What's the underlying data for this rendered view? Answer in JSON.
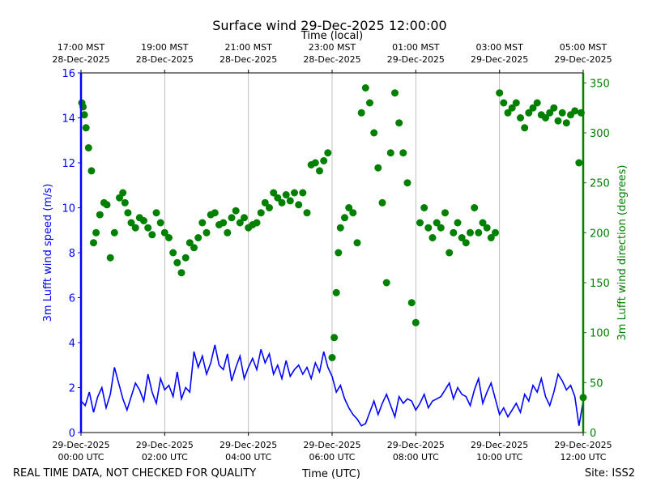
{
  "chart_data": {
    "type": "line+scatter",
    "title": "Surface wind 29-Dec-2025 12:00:00",
    "top_axis_label": "Time (local)",
    "xlabel": "Time (UTC)",
    "ylabel_left": "3m Lufft wind speed (m/s)",
    "ylabel_right": "3m Lufft wind direction (degrees)",
    "footer_left": "REAL TIME DATA, NOT CHECKED FOR QUALITY",
    "footer_right": "Site: ISS2",
    "x_range_hours": [
      0,
      12
    ],
    "ylim_left": [
      0,
      16
    ],
    "ylim_right": [
      0,
      360
    ],
    "left_ticks": [
      "0",
      "2",
      "4",
      "6",
      "8",
      "10",
      "12",
      "14",
      "16"
    ],
    "right_ticks": [
      "0",
      "50",
      "100",
      "150",
      "200",
      "250",
      "300",
      "350"
    ],
    "bottom_ticks": [
      {
        "hour": 0,
        "line1": "29-Dec-2025",
        "line2": "00:00 UTC"
      },
      {
        "hour": 2,
        "line1": "29-Dec-2025",
        "line2": "02:00 UTC"
      },
      {
        "hour": 4,
        "line1": "29-Dec-2025",
        "line2": "04:00 UTC"
      },
      {
        "hour": 6,
        "line1": "29-Dec-2025",
        "line2": "06:00 UTC"
      },
      {
        "hour": 8,
        "line1": "29-Dec-2025",
        "line2": "08:00 UTC"
      },
      {
        "hour": 10,
        "line1": "29-Dec-2025",
        "line2": "10:00 UTC"
      },
      {
        "hour": 12,
        "line1": "29-Dec-2025",
        "line2": "12:00 UTC"
      }
    ],
    "top_ticks": [
      {
        "hour": 0,
        "line1": "17:00 MST",
        "line2": "28-Dec-2025"
      },
      {
        "hour": 2,
        "line1": "19:00 MST",
        "line2": "28-Dec-2025"
      },
      {
        "hour": 4,
        "line1": "21:00 MST",
        "line2": "28-Dec-2025"
      },
      {
        "hour": 6,
        "line1": "23:00 MST",
        "line2": "28-Dec-2025"
      },
      {
        "hour": 8,
        "line1": "01:00 MST",
        "line2": "29-Dec-2025"
      },
      {
        "hour": 10,
        "line1": "03:00 MST",
        "line2": "29-Dec-2025"
      },
      {
        "hour": 12,
        "line1": "05:00 MST",
        "line2": "29-Dec-2025"
      }
    ],
    "speed_series": {
      "name": "3m Lufft wind speed (m/s)",
      "color": "#0000ff",
      "x_hours": [
        0.0,
        0.1,
        0.2,
        0.3,
        0.4,
        0.5,
        0.6,
        0.7,
        0.8,
        0.9,
        1.0,
        1.1,
        1.2,
        1.3,
        1.4,
        1.5,
        1.6,
        1.7,
        1.8,
        1.9,
        2.0,
        2.1,
        2.2,
        2.3,
        2.4,
        2.5,
        2.6,
        2.7,
        2.8,
        2.9,
        3.0,
        3.1,
        3.2,
        3.3,
        3.4,
        3.5,
        3.6,
        3.7,
        3.8,
        3.9,
        4.0,
        4.1,
        4.2,
        4.3,
        4.4,
        4.5,
        4.6,
        4.7,
        4.8,
        4.9,
        5.0,
        5.1,
        5.2,
        5.3,
        5.4,
        5.5,
        5.6,
        5.7,
        5.8,
        5.9,
        6.0,
        6.1,
        6.2,
        6.3,
        6.4,
        6.5,
        6.6,
        6.7,
        6.8,
        6.9,
        7.0,
        7.1,
        7.2,
        7.3,
        7.4,
        7.5,
        7.6,
        7.7,
        7.8,
        7.9,
        8.0,
        8.1,
        8.2,
        8.3,
        8.4,
        8.5,
        8.6,
        8.7,
        8.8,
        8.9,
        9.0,
        9.1,
        9.2,
        9.3,
        9.4,
        9.5,
        9.6,
        9.7,
        9.8,
        9.9,
        10.0,
        10.1,
        10.2,
        10.3,
        10.4,
        10.5,
        10.6,
        10.7,
        10.8,
        10.9,
        11.0,
        11.1,
        11.2,
        11.3,
        11.4,
        11.5,
        11.6,
        11.7,
        11.8,
        11.9,
        12.0
      ],
      "values": [
        1.4,
        1.2,
        1.8,
        0.9,
        1.6,
        2.0,
        1.1,
        1.7,
        2.9,
        2.2,
        1.5,
        1.0,
        1.6,
        2.2,
        1.9,
        1.4,
        2.6,
        1.8,
        1.3,
        2.4,
        1.9,
        2.1,
        1.6,
        2.7,
        1.5,
        2.0,
        1.8,
        3.6,
        2.9,
        3.4,
        2.6,
        3.1,
        3.9,
        3.0,
        2.8,
        3.5,
        2.3,
        2.9,
        3.4,
        2.4,
        2.9,
        3.3,
        2.8,
        3.7,
        3.1,
        3.5,
        2.6,
        3.0,
        2.4,
        3.2,
        2.5,
        2.8,
        3.0,
        2.6,
        2.9,
        2.4,
        3.1,
        2.7,
        3.6,
        2.9,
        2.5,
        1.8,
        2.1,
        1.5,
        1.1,
        0.8,
        0.6,
        0.3,
        0.4,
        0.9,
        1.4,
        0.8,
        1.3,
        1.7,
        1.2,
        0.7,
        1.6,
        1.3,
        1.5,
        1.4,
        1.0,
        1.3,
        1.7,
        1.1,
        1.4,
        1.5,
        1.6,
        1.9,
        2.2,
        1.5,
        2.0,
        1.7,
        1.6,
        1.2,
        1.9,
        2.4,
        1.3,
        1.8,
        2.2,
        1.5,
        0.8,
        1.1,
        0.7,
        1.0,
        1.3,
        0.9,
        1.7,
        1.4,
        2.1,
        1.8,
        2.4,
        1.6,
        1.2,
        1.8,
        2.6,
        2.3,
        1.9,
        2.1,
        1.6,
        0.3,
        1.4
      ]
    },
    "direction_series": {
      "name": "3m Lufft wind direction (degrees)",
      "color": "#008000",
      "x_hours": [
        0.02,
        0.05,
        0.08,
        0.12,
        0.18,
        0.25,
        0.3,
        0.36,
        0.45,
        0.55,
        0.62,
        0.7,
        0.8,
        0.92,
        1.0,
        1.05,
        1.12,
        1.2,
        1.3,
        1.4,
        1.5,
        1.6,
        1.7,
        1.8,
        1.9,
        2.0,
        2.1,
        2.2,
        2.3,
        2.4,
        2.5,
        2.6,
        2.7,
        2.8,
        2.9,
        3.0,
        3.1,
        3.2,
        3.3,
        3.4,
        3.5,
        3.6,
        3.7,
        3.8,
        3.9,
        4.0,
        4.1,
        4.2,
        4.3,
        4.4,
        4.5,
        4.6,
        4.7,
        4.8,
        4.9,
        5.0,
        5.1,
        5.2,
        5.3,
        5.4,
        5.5,
        5.6,
        5.7,
        5.8,
        5.9,
        6.0,
        6.05,
        6.1,
        6.15,
        6.2,
        6.3,
        6.4,
        6.5,
        6.6,
        6.7,
        6.8,
        6.9,
        7.0,
        7.1,
        7.2,
        7.3,
        7.4,
        7.5,
        7.6,
        7.7,
        7.8,
        7.9,
        8.0,
        8.1,
        8.2,
        8.3,
        8.4,
        8.5,
        8.6,
        8.7,
        8.8,
        8.9,
        9.0,
        9.1,
        9.2,
        9.3,
        9.4,
        9.5,
        9.6,
        9.7,
        9.8,
        9.9,
        10.0,
        10.1,
        10.2,
        10.3,
        10.4,
        10.5,
        10.6,
        10.7,
        10.8,
        10.9,
        11.0,
        11.1,
        11.2,
        11.3,
        11.4,
        11.5,
        11.6,
        11.7,
        11.8,
        11.9,
        11.95,
        12.0
      ],
      "values": [
        330,
        326,
        318,
        305,
        285,
        262,
        190,
        200,
        218,
        230,
        228,
        175,
        200,
        235,
        240,
        230,
        220,
        210,
        205,
        215,
        212,
        205,
        198,
        220,
        210,
        200,
        195,
        180,
        170,
        160,
        175,
        190,
        185,
        195,
        210,
        200,
        218,
        220,
        208,
        210,
        200,
        215,
        222,
        210,
        215,
        205,
        208,
        210,
        220,
        230,
        225,
        240,
        235,
        230,
        238,
        232,
        240,
        228,
        240,
        220,
        268,
        270,
        262,
        272,
        280,
        75,
        95,
        140,
        180,
        205,
        215,
        225,
        220,
        190,
        320,
        345,
        330,
        300,
        265,
        230,
        150,
        280,
        340,
        310,
        280,
        250,
        130,
        110,
        210,
        225,
        205,
        195,
        210,
        205,
        220,
        180,
        200,
        210,
        195,
        190,
        200,
        225,
        200,
        210,
        205,
        195,
        200,
        340,
        330,
        320,
        325,
        330,
        315,
        305,
        320,
        325,
        330,
        318,
        315,
        320,
        325,
        312,
        320,
        310,
        318,
        322,
        270,
        320,
        35
      ]
    }
  }
}
